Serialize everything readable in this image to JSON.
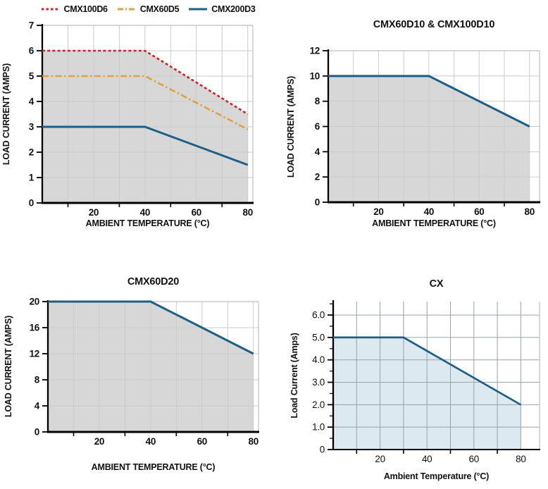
{
  "page": {
    "background": "#ffffff"
  },
  "legend": {
    "items": [
      {
        "label": "CMX100D6",
        "color": "#c9252b",
        "dash": "dashed"
      },
      {
        "label": "CMX60D5",
        "color": "#e0a23e",
        "dash": "dashdot"
      },
      {
        "label": "CMX200D3",
        "color": "#1d5f87",
        "dash": "solid"
      }
    ]
  },
  "chart_data": [
    {
      "id": "cmx-d6-d5-d3-derating",
      "type": "area",
      "title": "",
      "xlabel": "AMBIENT TEMPERATURE (°C)",
      "ylabel": "LOAD CURRENT (AMPS)",
      "xlim": [
        0,
        82
      ],
      "ylim": [
        0,
        7
      ],
      "xticks": {
        "values": [
          20,
          40,
          60,
          80
        ],
        "labels": [
          "20",
          "40",
          "60",
          "80"
        ]
      },
      "xminor": [
        10,
        30,
        50,
        70
      ],
      "yticks": {
        "values": [
          0,
          1,
          2,
          3,
          4,
          5,
          6,
          7
        ],
        "labels": [
          "0",
          "1",
          "2",
          "3",
          "4",
          "5",
          "6",
          "7"
        ]
      },
      "yminor": [],
      "grid_x": [
        10,
        20,
        30,
        40,
        50,
        60,
        70,
        80
      ],
      "grid_y": [
        1,
        2,
        3,
        4,
        5,
        6
      ],
      "grid_color": "#cbcbcb",
      "fill": {
        "color": "#d7d7d7",
        "to_x": 80
      },
      "frame": {
        "top": true,
        "right": true
      },
      "series": [
        {
          "name": "CMX100D6",
          "color": "#c9252b",
          "dash": "dashed",
          "fill_under": true,
          "points": [
            [
              0,
              6
            ],
            [
              40,
              6
            ],
            [
              80,
              3.5
            ]
          ]
        },
        {
          "name": "CMX60D5",
          "color": "#e0a23e",
          "dash": "dashdot",
          "points": [
            [
              0,
              5
            ],
            [
              40,
              5
            ],
            [
              80,
              2.9
            ]
          ]
        },
        {
          "name": "CMX200D3",
          "color": "#1d5f87",
          "dash": "solid",
          "points": [
            [
              0,
              3
            ],
            [
              40,
              3
            ],
            [
              80,
              1.5
            ]
          ]
        }
      ]
    },
    {
      "id": "cmx60d10-cmx100d10-derating",
      "type": "area",
      "title": "CMX60D10 & CMX100D10",
      "xlabel": "AMBIENT TEMPERATURE (°C)",
      "ylabel": "LOAD CURRENT (AMPS)",
      "xlim": [
        0,
        84
      ],
      "ylim": [
        0,
        12
      ],
      "xticks": {
        "values": [
          20,
          40,
          60,
          80
        ],
        "labels": [
          "20",
          "40",
          "60",
          "80"
        ]
      },
      "xminor": [
        10,
        30,
        50,
        70
      ],
      "yticks": {
        "values": [
          0,
          2,
          4,
          6,
          8,
          10,
          12
        ],
        "labels": [
          "0",
          "2",
          "4",
          "6",
          "8",
          "10",
          "12"
        ]
      },
      "yminor": [],
      "grid_x": [
        10,
        20,
        30,
        40,
        50,
        60,
        70,
        80
      ],
      "grid_y": [
        2,
        4,
        6,
        8,
        10
      ],
      "grid_color": "#cbcbcb",
      "fill": {
        "color": "#d7d7d7",
        "to_x": 80
      },
      "frame": {
        "top": true,
        "right": true
      },
      "series": [
        {
          "name": "CMX60D10 & CMX100D10",
          "color": "#1d5f87",
          "dash": "solid",
          "fill_under": true,
          "points": [
            [
              0,
              10
            ],
            [
              40,
              10
            ],
            [
              80,
              6
            ]
          ]
        }
      ]
    },
    {
      "id": "cmx60d20-derating",
      "type": "area",
      "title": "CMX60D20",
      "xlabel": "AMBIENT TEMPERATURE (°C)",
      "ylabel": "LOAD CURRENT (AMPS)",
      "xlim": [
        0,
        82
      ],
      "ylim": [
        0,
        20
      ],
      "xticks": {
        "values": [
          20,
          40,
          60,
          80
        ],
        "labels": [
          "20",
          "40",
          "60",
          "80"
        ]
      },
      "xminor": [
        10,
        30,
        50,
        70
      ],
      "yticks": {
        "values": [
          0,
          4,
          8,
          12,
          16,
          20
        ],
        "labels": [
          "0",
          "4",
          "8",
          "12",
          "16",
          "20"
        ]
      },
      "yminor": [],
      "grid_x": [
        10,
        20,
        30,
        40,
        50,
        60,
        70,
        80
      ],
      "grid_y": [
        4,
        8,
        12,
        16
      ],
      "grid_color": "#cbcbcb",
      "fill": {
        "color": "#d7d7d7",
        "to_x": 80
      },
      "frame": {
        "top": true,
        "right": true
      },
      "series": [
        {
          "name": "CMX60D20",
          "color": "#1d5f87",
          "dash": "solid",
          "fill_under": true,
          "points": [
            [
              0,
              20
            ],
            [
              40,
              20
            ],
            [
              80,
              12
            ]
          ]
        }
      ]
    },
    {
      "id": "cx-derating",
      "type": "area",
      "title": "CX",
      "xlabel": "Ambient Temperature (°C)",
      "ylabel": "Load Current (Amps)",
      "xlim": [
        0,
        88
      ],
      "ylim": [
        0,
        6.6
      ],
      "xticks": {
        "values": [
          20,
          40,
          60,
          80
        ],
        "labels": [
          "20",
          "40",
          "60",
          "80"
        ]
      },
      "xminor": [
        10,
        30,
        50,
        70
      ],
      "yticks": {
        "values": [
          0,
          1,
          2,
          3,
          4,
          5,
          6
        ],
        "labels": [
          "0",
          "1.0",
          "2.0",
          "3.0",
          "4.0",
          "5.0",
          "6.0"
        ]
      },
      "yminor": [
        0.5,
        1.5,
        2.5,
        3.5,
        4.5,
        5.5,
        6.5
      ],
      "grid_x": [
        10,
        20,
        30,
        40,
        50,
        60,
        70,
        80
      ],
      "grid_y": [
        1,
        2,
        3,
        4,
        5,
        6
      ],
      "grid_color": "#9aa1a7",
      "fill": {
        "color": "#dce9f1",
        "to_x": 80
      },
      "frame": {
        "top": false,
        "right": true
      },
      "series": [
        {
          "name": "CX",
          "color": "#1d5f87",
          "dash": "solid",
          "fill_under": true,
          "points": [
            [
              0,
              5
            ],
            [
              30,
              5
            ],
            [
              80,
              2
            ]
          ]
        }
      ]
    }
  ]
}
